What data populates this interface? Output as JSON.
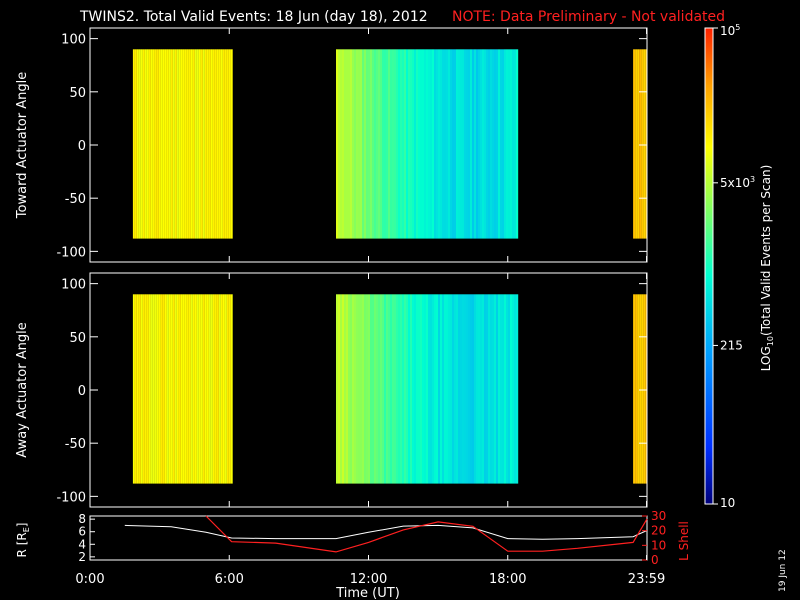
{
  "header": {
    "title": "TWINS2. Total Valid Events: 18 Jun (day  18), 2012",
    "note": "NOTE: Data Preliminary - Not validated"
  },
  "side_date": "19 Jun 12",
  "colors": {
    "background": "#000000",
    "note": "#ff2020",
    "frame": "#ffffff",
    "r_line": "#ffffff",
    "l_shell_line": "#ff2020"
  },
  "chart_data": [
    {
      "type": "heatmap",
      "name": "toward",
      "ylabel": "Toward Actuator Angle",
      "ylim": [
        -110,
        110
      ],
      "yticks": [
        "100",
        "50",
        "0",
        "-50",
        "-100"
      ],
      "ytick_values": [
        100,
        50,
        0,
        -50,
        -100
      ],
      "xlim_hours": [
        0,
        24
      ],
      "angle_range": [
        -88,
        90
      ],
      "blocks": [
        {
          "start_h": 1.85,
          "end_h": 6.15,
          "level": 0.72
        },
        {
          "start_h": 10.6,
          "end_h": 18.45,
          "level": 0.35
        },
        {
          "start_h": 23.4,
          "end_h": 24.0,
          "level": 0.8
        }
      ]
    },
    {
      "type": "heatmap",
      "name": "away",
      "ylabel": "Away Actuator Angle",
      "ylim": [
        -110,
        110
      ],
      "yticks": [
        "100",
        "50",
        "0",
        "-50",
        "-100"
      ],
      "ytick_values": [
        100,
        50,
        0,
        -50,
        -100
      ],
      "xlim_hours": [
        0,
        24
      ],
      "angle_range": [
        -88,
        90
      ],
      "blocks": [
        {
          "start_h": 1.85,
          "end_h": 6.15,
          "level": 0.72
        },
        {
          "start_h": 10.6,
          "end_h": 18.45,
          "level": 0.35
        },
        {
          "start_h": 23.4,
          "end_h": 24.0,
          "level": 0.8
        }
      ]
    },
    {
      "type": "line",
      "name": "orbit",
      "ylabel": "R [R",
      "ylabel_sub": "E",
      "ylabel_end": "]",
      "y2label": "L Shell",
      "xlabel": "Time (UT)",
      "xticks": [
        "0:00",
        "6:00",
        "12:00",
        "18:00",
        "23:59"
      ],
      "xtick_hours": [
        0,
        6,
        12,
        18,
        23.98
      ],
      "ylim": [
        1.5,
        8.5
      ],
      "yticks": [
        "8",
        "6",
        "4",
        "2"
      ],
      "ytick_values": [
        8,
        6,
        4,
        2
      ],
      "y2lim": [
        0,
        30
      ],
      "y2ticks": [
        "30",
        "20",
        "10",
        "0"
      ],
      "y2tick_values": [
        30,
        20,
        10,
        0
      ],
      "series": [
        {
          "name": "R",
          "x": [
            1.5,
            3.5,
            5.0,
            6.1,
            8.0,
            10.6,
            12.0,
            13.5,
            15.0,
            16.5,
            18.0,
            19.5,
            21.0,
            23.4,
            24.0
          ],
          "y": [
            7.0,
            6.8,
            5.9,
            5.0,
            4.9,
            4.9,
            5.9,
            6.9,
            7.0,
            6.6,
            4.9,
            4.8,
            4.9,
            5.2,
            6.2
          ]
        },
        {
          "name": "L Shell",
          "x": [
            5.0,
            6.1,
            8.0,
            10.6,
            12.0,
            13.5,
            15.0,
            16.5,
            18.0,
            19.5,
            21.0,
            23.4,
            24.0
          ],
          "y": [
            30,
            12.5,
            11.5,
            5.5,
            12.0,
            20.5,
            26.0,
            23.0,
            6.0,
            6.0,
            8.0,
            12.0,
            28.0
          ]
        }
      ]
    }
  ],
  "colorbar": {
    "title": "LOG",
    "title_sub": "10",
    "title_rest": "(Total Valid Events per Scan)",
    "scale": "log",
    "range": [
      10,
      100000
    ],
    "ticks": [
      {
        "value": 10,
        "label": "10"
      },
      {
        "value": 215,
        "label": "215"
      },
      {
        "value": 5000,
        "label": "5x10",
        "sup": "3"
      },
      {
        "value": 100000,
        "label": "10",
        "sup": "5"
      }
    ],
    "colormap": [
      "#00007a",
      "#0030ff",
      "#00a0ff",
      "#00ffd0",
      "#80ff60",
      "#ffff00",
      "#ffa000",
      "#ff2000"
    ]
  }
}
